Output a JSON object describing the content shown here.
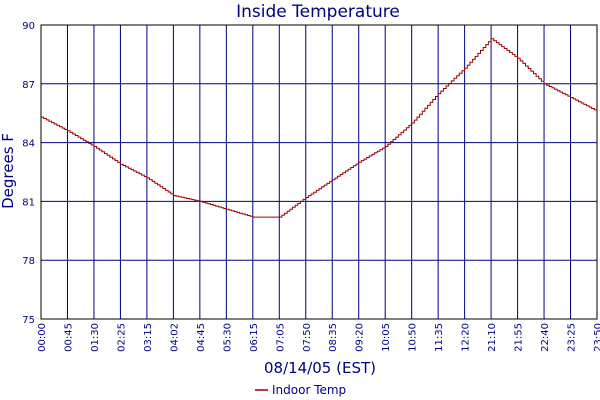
{
  "chart_data": {
    "type": "line",
    "title": "Inside Temperature",
    "xlabel": "08/14/05 (EST)",
    "ylabel": "Degrees F",
    "ylim": [
      75,
      90
    ],
    "yticks": [
      75,
      78,
      81,
      84,
      87,
      90
    ],
    "xlim": [
      "00:00",
      "23:50"
    ],
    "xtick_labels": [
      "00:00",
      "00:45",
      "01:30",
      "02:25",
      "03:15",
      "04:02",
      "04:45",
      "05:30",
      "06:15",
      "07:05",
      "07:50",
      "08:35",
      "09:20",
      "10:05",
      "10:50",
      "11:35",
      "12:20",
      "21:10",
      "21:55",
      "22:40",
      "23:25",
      "23:50"
    ],
    "grid": true,
    "legend_position": "bottom-center",
    "line_color": "#990000",
    "grid_color": "#000080",
    "series": [
      {
        "name": "Indoor Temp",
        "x": [
          "00:00",
          "00:45",
          "01:30",
          "02:25",
          "03:15",
          "04:02",
          "04:45",
          "05:30",
          "06:15",
          "07:05",
          "07:50",
          "08:35",
          "09:20",
          "10:05",
          "10:50",
          "11:35",
          "12:20",
          "21:10",
          "21:55",
          "22:40",
          "23:25",
          "23:50"
        ],
        "values": [
          85.3,
          84.6,
          83.8,
          82.9,
          82.2,
          81.3,
          81.0,
          80.6,
          80.2,
          80.2,
          81.2,
          82.1,
          83.0,
          83.8,
          85.0,
          86.5,
          87.8,
          89.3,
          88.3,
          87.0,
          86.3,
          85.6
        ]
      }
    ]
  }
}
